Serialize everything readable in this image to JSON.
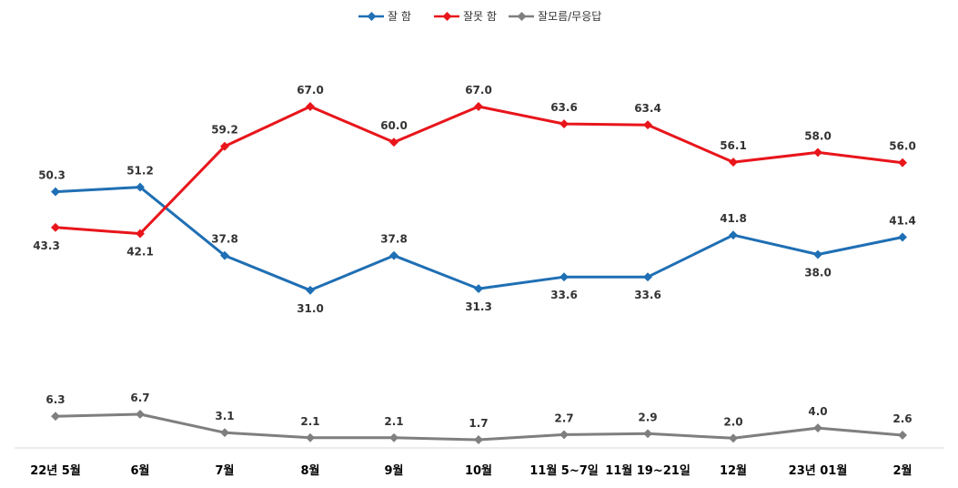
{
  "chart_data": {
    "type": "line",
    "categories": [
      "22년 5월",
      "6월",
      "7월",
      "8월",
      "9월",
      "10월",
      "11월 5~7일",
      "11월 19~21일",
      "12월",
      "23년 01월",
      "2월"
    ],
    "series": [
      {
        "name": "잘 함",
        "color": "#1F6FB4",
        "values": [
          50.3,
          51.2,
          37.8,
          31.0,
          37.8,
          31.3,
          33.6,
          33.6,
          41.8,
          38.0,
          41.4
        ],
        "labels": [
          "50.3",
          "51.2",
          "37.8",
          "31.0",
          "37.8",
          "31.3",
          "33.6",
          "33.6",
          "41.8",
          "38.0",
          "41.4"
        ]
      },
      {
        "name": "잘못 함",
        "color": "#E8151B",
        "values": [
          43.3,
          42.1,
          59.2,
          67.0,
          60.0,
          67.0,
          63.6,
          63.4,
          56.1,
          58.0,
          56.0
        ],
        "labels": [
          "43.3",
          "42.1",
          "59.2",
          "67.0",
          "60.0",
          "67.0",
          "63.6",
          "63.4",
          "56.1",
          "58.0",
          "56.0"
        ]
      },
      {
        "name": "잘모름/무응답",
        "color": "#7F7F7F",
        "values": [
          6.3,
          6.7,
          3.1,
          2.1,
          2.1,
          1.7,
          2.7,
          2.9,
          2.0,
          4.0,
          2.6
        ],
        "labels": [
          "6.3",
          "6.7",
          "3.1",
          "2.1",
          "2.1",
          "1.7",
          "2.7",
          "2.9",
          "2.0",
          "4.0",
          "2.6"
        ]
      }
    ],
    "ylim": [
      0,
      75
    ],
    "grid": false,
    "legend_position": "top-center"
  }
}
